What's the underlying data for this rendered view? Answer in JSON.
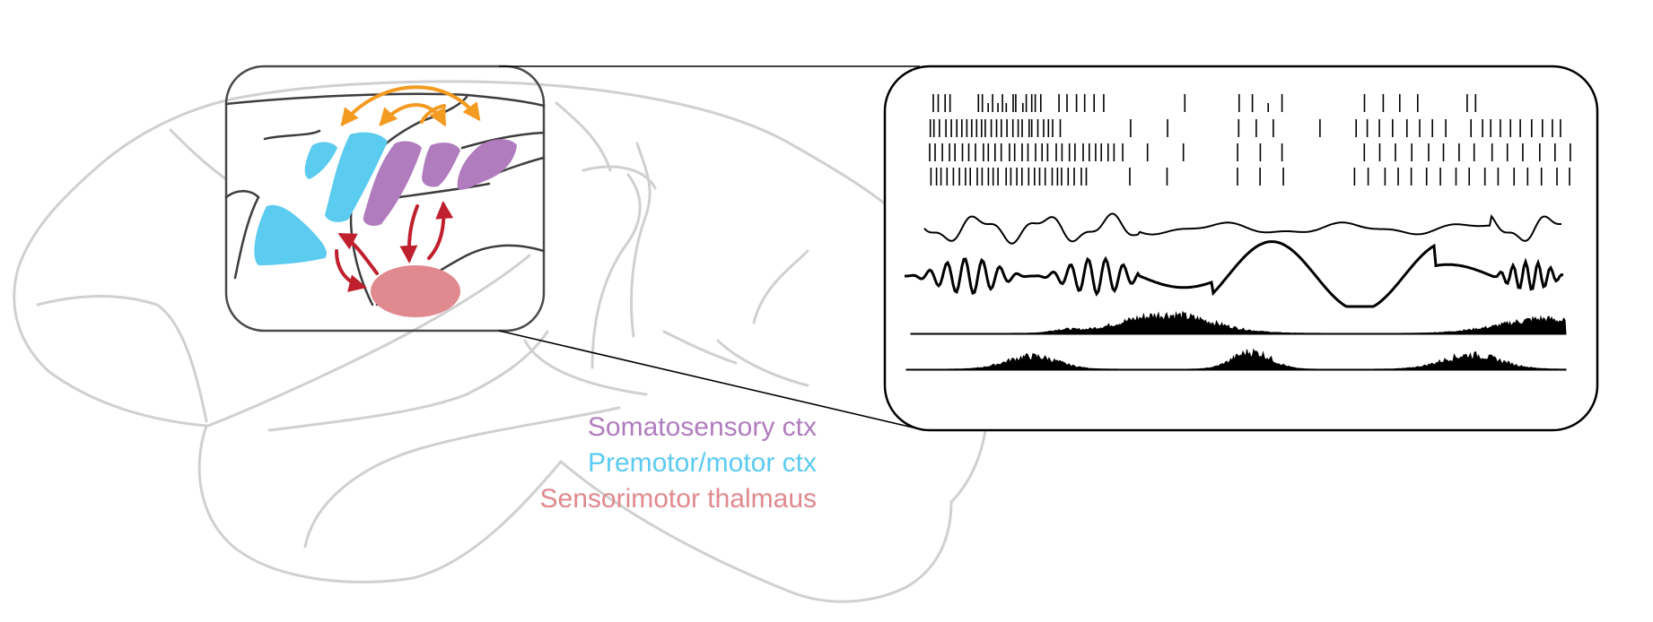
{
  "legend": {
    "somatosensory": "Somatosensory ctx",
    "premotor_motor": "Premotor/motor ctx",
    "thalamus": "Sensorimotor thalmaus"
  },
  "colors": {
    "somatosensory": "#b07cbe",
    "premotor_motor": "#5bcbf0",
    "thalamus": "#e0898f",
    "cortico_cortical_arrows": "#f39a21",
    "thalamo_cortical_arrows": "#c0202e",
    "brain_outline": "#d0d0d0",
    "traces": "#000000"
  },
  "icons": [
    "brain-outline",
    "zoom-box",
    "spike-raster",
    "lfp-trace",
    "envelope-trace"
  ]
}
